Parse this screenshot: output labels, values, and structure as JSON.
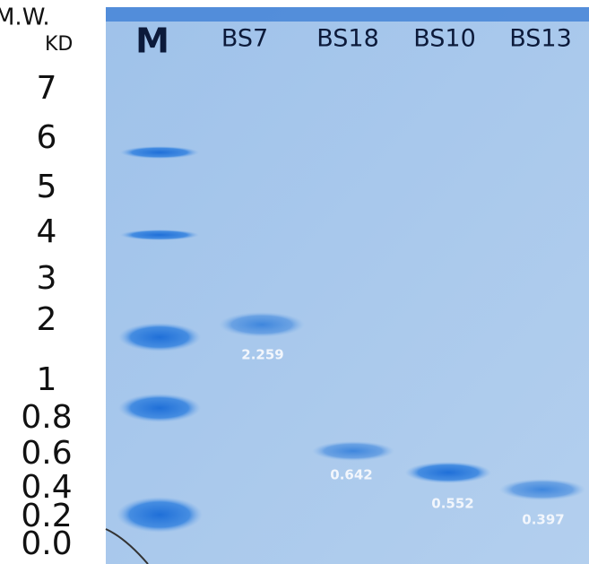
{
  "axis_title": {
    "line1": "M.W.",
    "line2": "KD"
  },
  "ticks": [
    "7",
    "6",
    "5",
    "4",
    "3",
    "2",
    "1",
    "0.8",
    "0.6",
    "0.4",
    "0.2",
    "0.0"
  ],
  "lanes": [
    {
      "label": "M"
    },
    {
      "label": "BS7",
      "band_label": "2.259"
    },
    {
      "label": "BS18",
      "band_label": "0.642"
    },
    {
      "label": "BS10",
      "band_label": "0.552"
    },
    {
      "label": "BS13",
      "band_label": "0.397"
    }
  ]
}
